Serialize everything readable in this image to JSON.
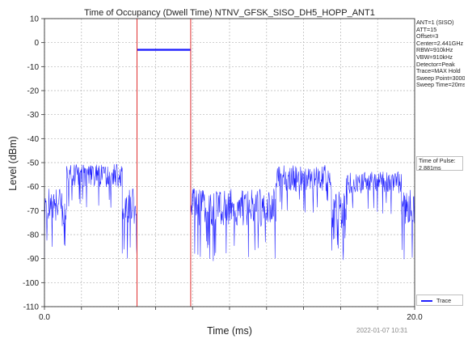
{
  "chart_data": {
    "type": "line",
    "title": "Time of Occupancy (Dwell Time) NTNV_GFSK_SISO_DH5_HOPP_ANT1",
    "xlabel": "Time (ms)",
    "ylabel": "Level (dBm)",
    "xlim": [
      0.0,
      20.0
    ],
    "ylim": [
      -110,
      10
    ],
    "x_tick_labels": [
      "0.0",
      "20.0"
    ],
    "y_ticks": [
      10,
      0,
      -10,
      -20,
      -30,
      -40,
      -50,
      -60,
      -70,
      -80,
      -90,
      -100,
      -110
    ],
    "grid": true,
    "legend_position": "bottom-right",
    "series": [
      {
        "name": "Trace",
        "color": "#1f1fff",
        "segments": [
          {
            "x_start": 0.0,
            "x_end": 1.2,
            "level_dbm": -68,
            "spread": 10
          },
          {
            "x_start": 1.2,
            "x_end": 4.2,
            "level_dbm": -55,
            "spread": 6
          },
          {
            "x_start": 4.2,
            "x_end": 5.0,
            "level_dbm": -68,
            "spread": 10
          },
          {
            "x_start": 5.0,
            "x_end": 7.9,
            "level_dbm": -3,
            "spread": 0.3
          },
          {
            "x_start": 7.9,
            "x_end": 12.5,
            "level_dbm": -68,
            "spread": 10
          },
          {
            "x_start": 12.5,
            "x_end": 15.5,
            "level_dbm": -56,
            "spread": 7
          },
          {
            "x_start": 15.5,
            "x_end": 16.3,
            "level_dbm": -69,
            "spread": 10
          },
          {
            "x_start": 16.3,
            "x_end": 19.3,
            "level_dbm": -58,
            "spread": 6
          },
          {
            "x_start": 19.3,
            "x_end": 20.0,
            "level_dbm": -68,
            "spread": 10
          }
        ]
      }
    ],
    "markers": [
      {
        "x": 5.0,
        "color": "#e03030"
      },
      {
        "x": 7.9,
        "color": "#e03030"
      }
    ]
  },
  "info_panel": [
    "ANT=1 (SISO)",
    "ATT=15",
    "Offset=3",
    "Center=2.441GHz",
    "RBW=910kHz",
    "VBW=910kHz",
    "Detector=Peak",
    "Trace=MAX Hold",
    "Sweep Point=3000",
    "Sweep Time=20ms"
  ],
  "pulse_box": {
    "label": "Time of Pulse:",
    "value": "2.881ms"
  },
  "legend": {
    "label": "Trace"
  },
  "timestamp": "2022-01-07 10:31"
}
